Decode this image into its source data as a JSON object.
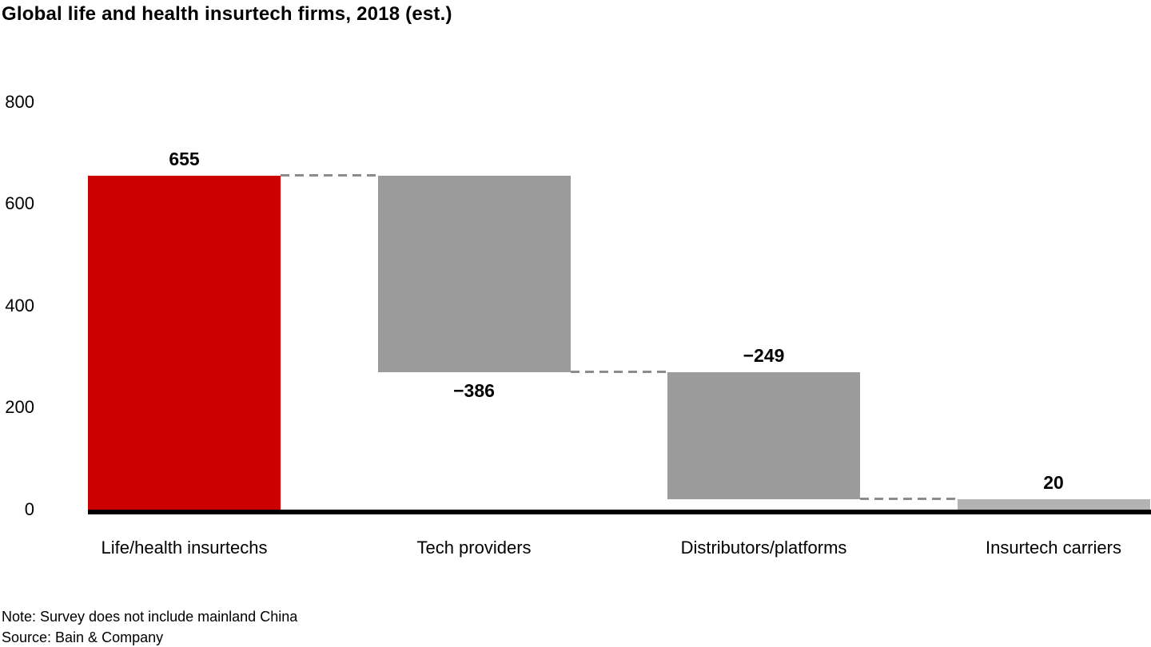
{
  "chart_data": {
    "type": "bar",
    "subtype": "waterfall",
    "title": "Global life and health insurtech firms, 2018 (est.)",
    "categories": [
      "Life/health insurtechs",
      "Tech providers",
      "Distributors/platforms",
      "Insurtech carriers"
    ],
    "values": [
      655,
      -386,
      -249,
      20
    ],
    "cumulative": [
      655,
      269,
      20,
      20
    ],
    "segments": [
      {
        "category": "Life/health insurtechs",
        "value_label": "655",
        "from": 0,
        "to": 655,
        "label_position": "above",
        "color_key": "highlight_bar"
      },
      {
        "category": "Tech providers",
        "value_label": "−386",
        "from": 655,
        "to": 269,
        "label_position": "below",
        "color_key": "default_bar"
      },
      {
        "category": "Distributors/platforms",
        "value_label": "−249",
        "from": 269,
        "to": 20,
        "label_position": "above",
        "color_key": "default_bar"
      },
      {
        "category": "Insurtech carriers",
        "value_label": "20",
        "from": 20,
        "to": 0,
        "label_position": "above",
        "color_key": "final_bar"
      }
    ],
    "yticks": [
      0,
      200,
      400,
      600,
      800
    ],
    "ylim": [
      0,
      800
    ],
    "xlabel": "",
    "ylabel": "",
    "grid": false,
    "legend": null,
    "connectors": [
      {
        "level": 655,
        "between": [
          "Life/health insurtechs",
          "Tech providers"
        ]
      },
      {
        "level": 269,
        "between": [
          "Tech providers",
          "Distributors/platforms"
        ]
      },
      {
        "level": 20,
        "between": [
          "Distributors/platforms",
          "Insurtech carriers"
        ]
      }
    ]
  },
  "colors": {
    "highlight_bar": "#cc0000",
    "default_bar": "#9b9b9b",
    "final_bar": "#b3b3b3",
    "connector": "#8c8c8c",
    "axis": "#000000",
    "text": "#000000"
  },
  "footer": {
    "note": "Note: Survey does not include mainland China",
    "source": "Source: Bain & Company"
  }
}
